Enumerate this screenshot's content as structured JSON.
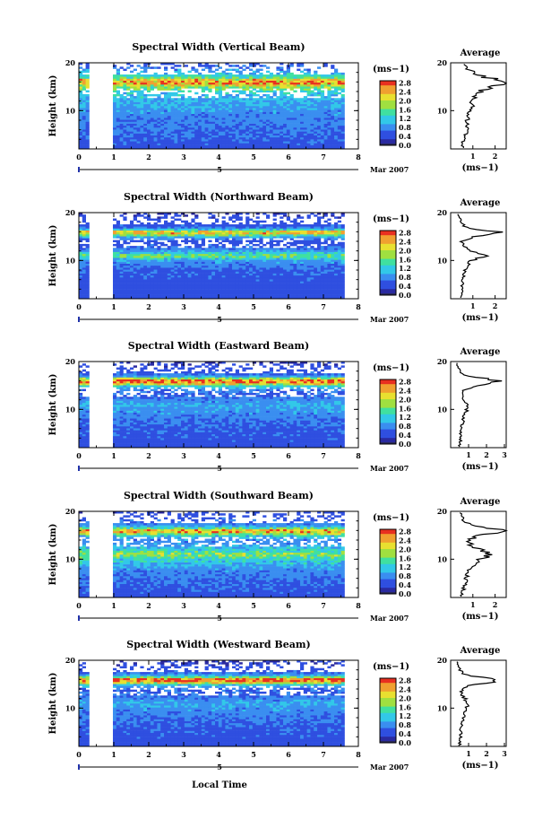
{
  "figure": {
    "xlabel": "Local Time",
    "date_label": "Mar 2007",
    "day_label": "5",
    "ylabel": "Height (km)",
    "cbar_unit": "(ms−1)",
    "avg_title": "Average",
    "avg_xlabel": "(ms−1)"
  },
  "colorscale": {
    "stops": [
      "#2a2aa0",
      "#2f4fe0",
      "#3a8ef0",
      "#32c8e8",
      "#40e0a0",
      "#a0e040",
      "#e8e030",
      "#f0a030",
      "#e83020"
    ],
    "gap_color": "#ffffff"
  },
  "chart_data": [
    {
      "type": "heatmap",
      "title": "Spectral Width (Vertical Beam)",
      "xlim": [
        0,
        8
      ],
      "ylim": [
        2,
        20
      ],
      "x_ticks": [
        0,
        1,
        2,
        3,
        4,
        5,
        6,
        7,
        8
      ],
      "y_ticks": [
        10,
        20
      ],
      "cbar_ticks": [
        0.0,
        0.4,
        0.8,
        1.2,
        1.6,
        2.0,
        2.4,
        2.8
      ],
      "cbar_labels": [
        "0.0",
        "0.4",
        "0.8",
        "1.2",
        "1.6",
        "2.0",
        "2.4",
        "2.8"
      ],
      "data_gaps": [
        [
          0.3,
          0.95
        ]
      ],
      "data_end": 7.6,
      "height_profile": {
        "heights_km": [
          2,
          4,
          6,
          8,
          10,
          11,
          12,
          13,
          14,
          15,
          15.5,
          16,
          16.5,
          17,
          18,
          19,
          20
        ],
        "width_ms": [
          0.5,
          0.6,
          0.7,
          0.75,
          0.85,
          0.95,
          1.0,
          1.1,
          1.3,
          1.8,
          2.3,
          2.6,
          2.2,
          1.5,
          1.0,
          0.7,
          0.5
        ]
      },
      "avg_xlim": [
        0,
        2.5
      ],
      "avg_ticks": [
        1,
        2
      ],
      "avg_tick_labels": [
        "1",
        "2"
      ]
    },
    {
      "type": "heatmap",
      "title": "Spectral Width (Northward Beam)",
      "xlim": [
        0,
        8
      ],
      "ylim": [
        2,
        20
      ],
      "x_ticks": [
        0,
        1,
        2,
        3,
        4,
        5,
        6,
        7,
        8
      ],
      "y_ticks": [
        10,
        20
      ],
      "cbar_ticks": [
        0.0,
        0.4,
        0.8,
        1.2,
        1.6,
        2.0,
        2.4,
        2.8
      ],
      "cbar_labels": [
        "0.0",
        "0.4",
        "0.8",
        "1.2",
        "1.6",
        "2.0",
        "2.4",
        "2.8"
      ],
      "data_gaps": [
        [
          0.3,
          0.95
        ]
      ],
      "data_end": 7.6,
      "height_profile": {
        "heights_km": [
          2,
          4,
          6,
          8,
          10,
          11,
          12,
          13,
          14,
          15,
          15.5,
          16,
          16.5,
          17,
          18,
          19,
          20
        ],
        "width_ms": [
          0.5,
          0.5,
          0.55,
          0.6,
          0.9,
          1.7,
          0.9,
          0.55,
          0.5,
          1.0,
          2.0,
          2.4,
          1.2,
          0.6,
          0.5,
          0.4,
          0.3
        ]
      },
      "avg_xlim": [
        0,
        2.5
      ],
      "avg_ticks": [
        1,
        2
      ],
      "avg_tick_labels": [
        "1",
        "2"
      ]
    },
    {
      "type": "heatmap",
      "title": "Spectral Width (Eastward Beam)",
      "xlim": [
        0,
        8
      ],
      "ylim": [
        2,
        20
      ],
      "x_ticks": [
        0,
        1,
        2,
        3,
        4,
        5,
        6,
        7,
        8
      ],
      "y_ticks": [
        10,
        20
      ],
      "cbar_ticks": [
        0.0,
        0.4,
        0.8,
        1.2,
        1.6,
        2.0,
        2.4,
        2.8
      ],
      "cbar_labels": [
        "0.0",
        "0.4",
        "0.8",
        "1.2",
        "1.6",
        "2.0",
        "2.4",
        "2.8"
      ],
      "data_gaps": [
        [
          0.3,
          0.95
        ]
      ],
      "data_end": 7.6,
      "height_profile": {
        "heights_km": [
          2,
          4,
          6,
          8,
          10,
          11,
          12,
          13,
          14,
          15,
          15.5,
          16,
          16.5,
          17,
          18,
          19,
          20
        ],
        "width_ms": [
          0.5,
          0.55,
          0.6,
          0.7,
          0.9,
          1.0,
          0.8,
          0.6,
          0.7,
          1.4,
          2.5,
          2.9,
          1.8,
          0.8,
          0.5,
          0.4,
          0.3
        ]
      },
      "avg_xlim": [
        0,
        3.1
      ],
      "avg_ticks": [
        1,
        2,
        3
      ],
      "avg_tick_labels": [
        "1",
        "2",
        "3"
      ]
    },
    {
      "type": "heatmap",
      "title": "Spectral Width (Southward Beam)",
      "xlim": [
        0,
        8
      ],
      "ylim": [
        2,
        20
      ],
      "x_ticks": [
        0,
        1,
        2,
        3,
        4,
        5,
        6,
        7,
        8
      ],
      "y_ticks": [
        10,
        20
      ],
      "cbar_ticks": [
        0.0,
        0.4,
        0.8,
        1.2,
        1.6,
        2.0,
        2.4,
        2.8
      ],
      "cbar_labels": [
        "0.0",
        "0.4",
        "0.8",
        "1.2",
        "1.6",
        "2.0",
        "2.4",
        "2.8"
      ],
      "data_gaps": [
        [
          0.3,
          0.95
        ]
      ],
      "data_end": 7.6,
      "height_profile": {
        "heights_km": [
          2,
          4,
          6,
          8,
          10,
          11,
          12,
          13,
          14,
          15,
          15.5,
          16,
          16.5,
          17,
          18,
          19,
          20
        ],
        "width_ms": [
          0.5,
          0.6,
          0.7,
          0.85,
          1.3,
          1.8,
          1.3,
          0.9,
          0.8,
          1.3,
          2.1,
          2.5,
          1.6,
          0.9,
          0.6,
          0.5,
          0.4
        ]
      },
      "avg_xlim": [
        0,
        2.5
      ],
      "avg_ticks": [
        1,
        2
      ],
      "avg_tick_labels": [
        "1",
        "2"
      ]
    },
    {
      "type": "heatmap",
      "title": "Spectral Width (Westward Beam)",
      "xlim": [
        0,
        8
      ],
      "ylim": [
        2,
        20
      ],
      "x_ticks": [
        0,
        1,
        2,
        3,
        4,
        5,
        6,
        7,
        8
      ],
      "y_ticks": [
        10,
        20
      ],
      "cbar_ticks": [
        0.0,
        0.4,
        0.8,
        1.2,
        1.6,
        2.0,
        2.4,
        2.8
      ],
      "cbar_labels": [
        "0.0",
        "0.4",
        "0.8",
        "1.2",
        "1.6",
        "2.0",
        "2.4",
        "2.8"
      ],
      "data_gaps": [
        [
          0.3,
          0.95
        ]
      ],
      "data_end": 7.6,
      "height_profile": {
        "heights_km": [
          2,
          4,
          6,
          8,
          10,
          11,
          12,
          13,
          14,
          15,
          15.5,
          16,
          16.5,
          17,
          18,
          19,
          20
        ],
        "width_ms": [
          0.5,
          0.55,
          0.6,
          0.7,
          0.85,
          1.0,
          0.8,
          0.6,
          0.65,
          1.3,
          2.6,
          2.9,
          1.6,
          0.8,
          0.5,
          0.4,
          0.3
        ]
      },
      "avg_xlim": [
        0,
        3.1
      ],
      "avg_ticks": [
        1,
        2,
        3
      ],
      "avg_tick_labels": [
        "1",
        "2",
        "3"
      ]
    }
  ]
}
